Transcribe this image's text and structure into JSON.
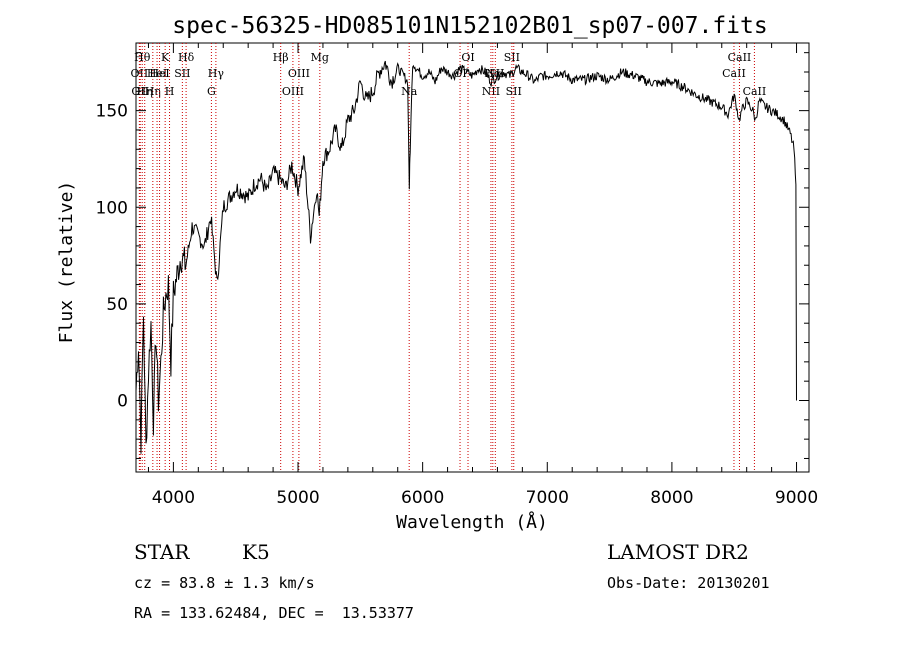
{
  "chart_data": {
    "type": "line",
    "title": "spec-56325-HD085101N152102B01_sp07-007.fits",
    "xlabel": "Wavelength (Å)",
    "ylabel": "Flux (relative)",
    "xlim": [
      3700,
      9100
    ],
    "ylim": [
      -37,
      185
    ],
    "xticks": [
      4000,
      5000,
      6000,
      7000,
      8000,
      9000
    ],
    "yticks": [
      0,
      50,
      100,
      150
    ],
    "line_color": "#000000",
    "marker_color": "#cc0000",
    "grid": false,
    "series": [
      {
        "x": [
          3700,
          3720,
          3740,
          3760,
          3780,
          3800,
          3820,
          3840,
          3860,
          3880,
          3900,
          3920,
          3940,
          3960,
          3980,
          4000,
          4030,
          4060,
          4100,
          4150,
          4200,
          4250,
          4300,
          4350,
          4400,
          4450,
          4500,
          4550,
          4600,
          4650,
          4700,
          4750,
          4800,
          4850,
          4900,
          4950,
          5000,
          5050,
          5100,
          5150,
          5170,
          5200,
          5250,
          5300,
          5350,
          5400,
          5450,
          5500,
          5550,
          5600,
          5650,
          5700,
          5750,
          5800,
          5850,
          5880,
          5893,
          5896,
          5900,
          5920,
          5950,
          6000,
          6050,
          6100,
          6150,
          6200,
          6250,
          6300,
          6350,
          6400,
          6450,
          6500,
          6550,
          6600,
          6650,
          6700,
          6750,
          6800,
          6850,
          6900,
          6950,
          7000,
          7100,
          7200,
          7300,
          7400,
          7500,
          7600,
          7700,
          7800,
          7900,
          8000,
          8100,
          8200,
          8300,
          8400,
          8450,
          8500,
          8540,
          8560,
          8600,
          8650,
          8670,
          8700,
          8750,
          8800,
          8850,
          8900,
          8950,
          8980,
          8995,
          9000
        ],
        "y": [
          5,
          30,
          -20,
          45,
          -25,
          15,
          40,
          -10,
          35,
          0,
          20,
          45,
          55,
          60,
          20,
          55,
          65,
          75,
          70,
          90,
          85,
          80,
          95,
          60,
          100,
          105,
          110,
          108,
          105,
          112,
          115,
          108,
          118,
          115,
          110,
          122,
          110,
          125,
          85,
          110,
          95,
          125,
          130,
          140,
          130,
          145,
          150,
          165,
          155,
          160,
          170,
          175,
          165,
          172,
          168,
          165,
          110,
          120,
          130,
          175,
          172,
          168,
          170,
          165,
          172,
          170,
          168,
          172,
          170,
          168,
          172,
          170,
          165,
          168,
          170,
          168,
          172,
          170,
          168,
          165,
          168,
          168,
          170,
          166,
          166,
          168,
          166,
          170,
          168,
          165,
          164,
          165,
          162,
          158,
          155,
          152,
          148,
          158,
          145,
          150,
          155,
          150,
          145,
          155,
          152,
          150,
          148,
          145,
          138,
          130,
          110,
          0
        ]
      }
    ],
    "line_markers": [
      {
        "x": 3727,
        "label": "OII",
        "row": 2
      },
      {
        "x": 3734,
        "label": "OII",
        "row": 3
      },
      {
        "x": 3750,
        "label": "Hθ",
        "row": 1
      },
      {
        "x": 3770,
        "label": "Hη",
        "row": 3
      },
      {
        "x": 3835,
        "label": "Hη",
        "row": 3
      },
      {
        "x": 3869,
        "label": "HeI",
        "row": 2
      },
      {
        "x": 3889,
        "label": "HeI",
        "row": 2
      },
      {
        "x": 3934,
        "label": "K",
        "row": 1
      },
      {
        "x": 3969,
        "label": "H",
        "row": 3
      },
      {
        "x": 4072,
        "label": "SII",
        "row": 2
      },
      {
        "x": 4102,
        "label": "Hδ",
        "row": 1
      },
      {
        "x": 4305,
        "label": "G",
        "row": 3
      },
      {
        "x": 4341,
        "label": "Hγ",
        "row": 2
      },
      {
        "x": 4861,
        "label": "Hβ",
        "row": 1
      },
      {
        "x": 4959,
        "label": "OIII",
        "row": 3
      },
      {
        "x": 5007,
        "label": "OIII",
        "row": 2
      },
      {
        "x": 5175,
        "label": "Mg",
        "row": 1
      },
      {
        "x": 5892,
        "label": "Na",
        "row": 3
      },
      {
        "x": 6300,
        "label": "OI",
        "row": 2
      },
      {
        "x": 6364,
        "label": "OI",
        "row": 1
      },
      {
        "x": 6548,
        "label": "NII",
        "row": 3
      },
      {
        "x": 6563,
        "label": "Hα",
        "row": 2
      },
      {
        "x": 6583,
        "label": "NII",
        "row": 2
      },
      {
        "x": 6716,
        "label": "SII",
        "row": 1
      },
      {
        "x": 6731,
        "label": "SII",
        "row": 3
      },
      {
        "x": 8498,
        "label": "CaII",
        "row": 2
      },
      {
        "x": 8542,
        "label": "CaII",
        "row": 1
      },
      {
        "x": 8662,
        "label": "CaII",
        "row": 3
      }
    ]
  },
  "info": {
    "object_class": "STAR",
    "subclass": "K5",
    "survey": "LAMOST DR2",
    "redshift": "cz = 83.8 ± 1.3 km/s",
    "obs_date": "Obs-Date: 20130201",
    "coords": "RA = 133.62484, DEC =  13.53377"
  }
}
